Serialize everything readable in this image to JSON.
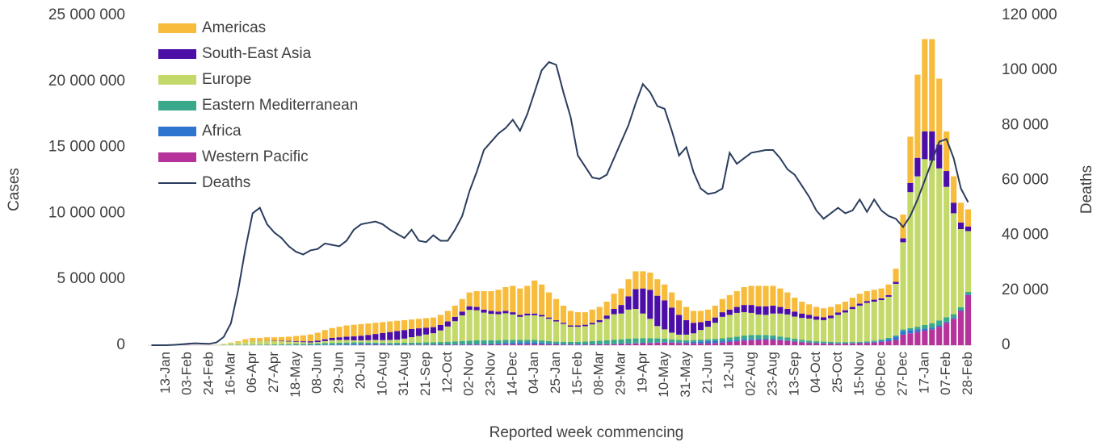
{
  "chart_data": {
    "type": "bar",
    "x_label": "Reported week commencing",
    "y_label": "Cases",
    "y2_label": "Deaths",
    "grid": false,
    "legend": "upper left",
    "categories": [
      null,
      null,
      "13-Jan",
      null,
      null,
      "03-Feb",
      null,
      null,
      "24-Feb",
      null,
      null,
      "16-Mar",
      null,
      null,
      "06-Apr",
      null,
      null,
      "27-Apr",
      null,
      null,
      "18-May",
      null,
      null,
      "08-Jun",
      null,
      null,
      "29-Jun",
      null,
      null,
      "20-Jul",
      null,
      null,
      "10-Aug",
      null,
      null,
      "31-Aug",
      null,
      null,
      "21-Sep",
      null,
      null,
      "12-Oct",
      null,
      null,
      "02-Nov",
      null,
      null,
      "23-Nov",
      null,
      null,
      "14-Dec",
      null,
      null,
      "04-Jan",
      null,
      null,
      "25-Jan",
      null,
      null,
      "15-Feb",
      null,
      null,
      "08-Mar",
      null,
      null,
      "29-Mar",
      null,
      null,
      "19-Apr",
      null,
      null,
      "10-May",
      null,
      null,
      "31-May",
      null,
      null,
      "21-Jun",
      null,
      null,
      "12-Jul",
      null,
      null,
      "02-Aug",
      null,
      null,
      "23-Aug",
      null,
      null,
      "13-Sep",
      null,
      null,
      "04-Oct",
      null,
      null,
      "25-Oct",
      null,
      null,
      "15-Nov",
      null,
      null,
      "06-Dec",
      null,
      null,
      "27-Dec",
      null,
      null,
      "17-Jan",
      null,
      null,
      "07-Feb",
      null,
      null,
      "28-Feb"
    ],
    "series": [
      {
        "name": "Americas",
        "color": "#f8bc3c",
        "values": [
          0,
          0,
          0,
          0,
          0,
          0,
          0,
          0,
          0,
          1000,
          5000,
          30000,
          100000,
          200000,
          240000,
          230000,
          250000,
          260000,
          280000,
          320000,
          380000,
          450000,
          520000,
          600000,
          700000,
          750000,
          800000,
          850000,
          880000,
          880000,
          870000,
          850000,
          820000,
          800000,
          780000,
          750000,
          720000,
          720000,
          720000,
          730000,
          760000,
          800000,
          850000,
          950000,
          1050000,
          1200000,
          1400000,
          1500000,
          1650000,
          1800000,
          2000000,
          2000000,
          2100000,
          2500000,
          2300000,
          1900000,
          1600000,
          1300000,
          1100000,
          1000000,
          950000,
          1000000,
          1000000,
          1050000,
          1150000,
          1250000,
          1300000,
          1350000,
          1300000,
          1300000,
          1250000,
          1200000,
          1150000,
          1100000,
          1000000,
          900000,
          850000,
          850000,
          900000,
          1000000,
          1100000,
          1200000,
          1350000,
          1450000,
          1550000,
          1550000,
          1500000,
          1400000,
          1250000,
          1050000,
          900000,
          800000,
          720000,
          680000,
          650000,
          620000,
          650000,
          700000,
          750000,
          750000,
          750000,
          750000,
          800000,
          1000000,
          1800000,
          3500000,
          6300000,
          7000000,
          7000000,
          5000000,
          3000000,
          2000000,
          1500000,
          1300000
        ]
      },
      {
        "name": "South-East Asia",
        "color": "#4b0fa8",
        "values": [
          0,
          0,
          0,
          0,
          0,
          0,
          0,
          0,
          0,
          0,
          0,
          1000,
          2000,
          5000,
          10000,
          15000,
          20000,
          30000,
          40000,
          50000,
          60000,
          70000,
          90000,
          110000,
          140000,
          170000,
          200000,
          250000,
          300000,
          350000,
          400000,
          450000,
          550000,
          600000,
          650000,
          650000,
          620000,
          580000,
          520000,
          460000,
          420000,
          380000,
          330000,
          290000,
          270000,
          250000,
          230000,
          220000,
          200000,
          180000,
          170000,
          150000,
          140000,
          130000,
          120000,
          100000,
          100000,
          90000,
          90000,
          100000,
          110000,
          120000,
          150000,
          250000,
          400000,
          650000,
          1000000,
          1500000,
          1900000,
          2200000,
          2300000,
          2200000,
          1900000,
          1500000,
          1100000,
          800000,
          600000,
          450000,
          400000,
          350000,
          400000,
          450000,
          550000,
          600000,
          620000,
          650000,
          600000,
          500000,
          420000,
          380000,
          330000,
          280000,
          250000,
          220000,
          200000,
          180000,
          170000,
          160000,
          150000,
          140000,
          150000,
          130000,
          130000,
          150000,
          300000,
          700000,
          1400000,
          2100000,
          2200000,
          1800000,
          1200000,
          800000,
          500000,
          350000
        ]
      },
      {
        "name": "Europe",
        "color": "#c3d96a",
        "values": [
          0,
          0,
          0,
          0,
          0,
          0,
          0,
          0,
          6000,
          19000,
          80000,
          146000,
          168000,
          208000,
          256000,
          256000,
          276000,
          252000,
          232000,
          200000,
          168000,
          125000,
          90000,
          109000,
          158000,
          207000,
          215000,
          195000,
          150000,
          155000,
          175000,
          205000,
          200000,
          223000,
          240000,
          315000,
          420000,
          498000,
          595000,
          682000,
          880000,
          1158000,
          1530000,
          1940000,
          2330000,
          2280000,
          2095000,
          2000000,
          1970000,
          2020000,
          1925000,
          1750000,
          1855000,
          1870000,
          1820000,
          1690000,
          1530000,
          1350000,
          1155000,
          1140000,
          1160000,
          1275000,
          1410000,
          1625000,
          1935000,
          1955000,
          2215000,
          2235000,
          1865000,
          1475000,
          935000,
          710000,
          515000,
          405000,
          430000,
          510000,
          730000,
          950000,
          1220000,
          1630000,
          1720000,
          1800000,
          1770000,
          1680000,
          1550000,
          1525000,
          1660000,
          1740000,
          1750000,
          1680000,
          1655000,
          1670000,
          1630000,
          1630000,
          1800000,
          2070000,
          2245000,
          2500000,
          2740000,
          2925000,
          2960000,
          2990000,
          3115000,
          3910000,
          6610000,
          10300000,
          11400000,
          12570000,
          12330000,
          11520000,
          9880000,
          7650000,
          5920000,
          4615000
        ]
      },
      {
        "name": "Eastern Mediterranean",
        "color": "#3aa88a",
        "values": [
          0,
          0,
          0,
          0,
          0,
          0,
          0,
          0,
          1000,
          5000,
          10000,
          15000,
          20000,
          25000,
          30000,
          35000,
          40000,
          45000,
          55000,
          65000,
          75000,
          85000,
          95000,
          100000,
          110000,
          120000,
          120000,
          120000,
          120000,
          110000,
          100000,
          100000,
          100000,
          110000,
          120000,
          130000,
          140000,
          150000,
          160000,
          170000,
          180000,
          200000,
          220000,
          240000,
          260000,
          270000,
          260000,
          250000,
          230000,
          220000,
          200000,
          180000,
          170000,
          170000,
          160000,
          150000,
          140000,
          150000,
          160000,
          170000,
          190000,
          210000,
          240000,
          270000,
          300000,
          320000,
          340000,
          350000,
          350000,
          320000,
          290000,
          250000,
          200000,
          170000,
          150000,
          140000,
          130000,
          130000,
          140000,
          170000,
          200000,
          240000,
          280000,
          300000,
          300000,
          280000,
          250000,
          220000,
          200000,
          180000,
          160000,
          140000,
          120000,
          110000,
          100000,
          90000,
          85000,
          80000,
          75000,
          75000,
          80000,
          80000,
          85000,
          90000,
          110000,
          150000,
          200000,
          280000,
          350000,
          380000,
          340000,
          280000,
          220000,
          180000
        ]
      },
      {
        "name": "Africa",
        "color": "#2e75d0",
        "values": [
          0,
          0,
          0,
          0,
          0,
          0,
          0,
          0,
          0,
          0,
          0,
          1000,
          2000,
          3000,
          4000,
          5000,
          6000,
          7000,
          8000,
          10000,
          12000,
          15000,
          20000,
          25000,
          35000,
          45000,
          55000,
          70000,
          80000,
          80000,
          75000,
          65000,
          55000,
          45000,
          40000,
          35000,
          30000,
          30000,
          30000,
          30000,
          30000,
          30000,
          35000,
          40000,
          45000,
          50000,
          60000,
          70000,
          80000,
          100000,
          120000,
          140000,
          150000,
          140000,
          120000,
          90000,
          70000,
          60000,
          50000,
          45000,
          40000,
          40000,
          40000,
          35000,
          35000,
          35000,
          35000,
          35000,
          35000,
          35000,
          35000,
          40000,
          45000,
          55000,
          70000,
          110000,
          150000,
          170000,
          170000,
          150000,
          130000,
          110000,
          100000,
          90000,
          80000,
          75000,
          70000,
          60000,
          50000,
          40000,
          35000,
          30000,
          30000,
          30000,
          30000,
          30000,
          30000,
          30000,
          35000,
          40000,
          60000,
          100000,
          170000,
          250000,
          280000,
          250000,
          200000,
          150000,
          120000,
          100000,
          80000,
          70000,
          60000,
          55000
        ]
      },
      {
        "name": "Western Pacific",
        "color": "#b5339a",
        "values": [
          0,
          0,
          5000,
          15000,
          20000,
          15000,
          8000,
          5000,
          3000,
          5000,
          5000,
          7000,
          8000,
          9000,
          10000,
          9000,
          8000,
          6000,
          5000,
          5000,
          5000,
          5000,
          5000,
          6000,
          7000,
          8000,
          10000,
          15000,
          20000,
          25000,
          30000,
          30000,
          25000,
          22000,
          20000,
          20000,
          20000,
          22000,
          25000,
          28000,
          30000,
          32000,
          35000,
          40000,
          45000,
          50000,
          55000,
          60000,
          70000,
          80000,
          85000,
          80000,
          85000,
          90000,
          80000,
          70000,
          60000,
          50000,
          45000,
          45000,
          50000,
          55000,
          60000,
          70000,
          80000,
          90000,
          110000,
          130000,
          150000,
          170000,
          190000,
          200000,
          190000,
          170000,
          150000,
          140000,
          140000,
          150000,
          170000,
          200000,
          250000,
          300000,
          350000,
          380000,
          400000,
          420000,
          420000,
          380000,
          330000,
          270000,
          220000,
          180000,
          150000,
          130000,
          120000,
          110000,
          120000,
          130000,
          150000,
          170000,
          200000,
          250000,
          300000,
          400000,
          800000,
          900000,
          1000000,
          1100000,
          1200000,
          1400000,
          1700000,
          2000000,
          2600000,
          3800000
        ]
      },
      {
        "name": "Deaths",
        "type": "line",
        "axis": "y2",
        "color": "#2b3d5e",
        "values": [
          0,
          0,
          0,
          100,
          300,
          500,
          700,
          600,
          500,
          1000,
          3000,
          8000,
          20000,
          35000,
          48000,
          50000,
          44000,
          41000,
          39000,
          36000,
          34000,
          33000,
          34500,
          35000,
          37000,
          36500,
          36000,
          38000,
          42000,
          44000,
          44500,
          45000,
          44000,
          42000,
          40500,
          39000,
          42000,
          38000,
          37500,
          40000,
          38000,
          38000,
          42000,
          47000,
          56000,
          63000,
          71000,
          74000,
          77000,
          79000,
          82000,
          78000,
          84000,
          92000,
          100000,
          103000,
          102000,
          92000,
          83000,
          69000,
          65000,
          61000,
          60500,
          62000,
          68000,
          74000,
          80000,
          88000,
          95000,
          92000,
          87000,
          86000,
          78000,
          69000,
          72000,
          63000,
          57000,
          55000,
          55500,
          57000,
          70000,
          66000,
          68000,
          70000,
          70500,
          71000,
          71000,
          68000,
          64000,
          62000,
          58000,
          54000,
          49000,
          46000,
          48000,
          50000,
          48000,
          49000,
          53000,
          48500,
          53000,
          49000,
          47000,
          46000,
          43000,
          47000,
          53000,
          60000,
          67000,
          74000,
          75000,
          68000,
          57000,
          52000
        ]
      }
    ],
    "ylim": [
      0,
      25000000
    ],
    "yticks": [
      0,
      {
        "value": 5000000,
        "label": "5 000 000"
      },
      {
        "value": 10000000,
        "label": "10 000 000"
      },
      {
        "value": 15000000,
        "label": "15 000 000"
      },
      {
        "value": 20000000,
        "label": "20 000 000"
      },
      {
        "value": 25000000,
        "label": "25 000 000"
      }
    ],
    "y2lim": [
      0,
      120000
    ],
    "y2ticks": [
      0,
      {
        "value": 20000,
        "label": "20 000"
      },
      {
        "value": 40000,
        "label": "40 000"
      },
      {
        "value": 60000,
        "label": "60 000"
      },
      {
        "value": 80000,
        "label": "80 000"
      },
      {
        "value": 100000,
        "label": "100 000"
      },
      {
        "value": 120000,
        "label": "120 000"
      }
    ]
  }
}
